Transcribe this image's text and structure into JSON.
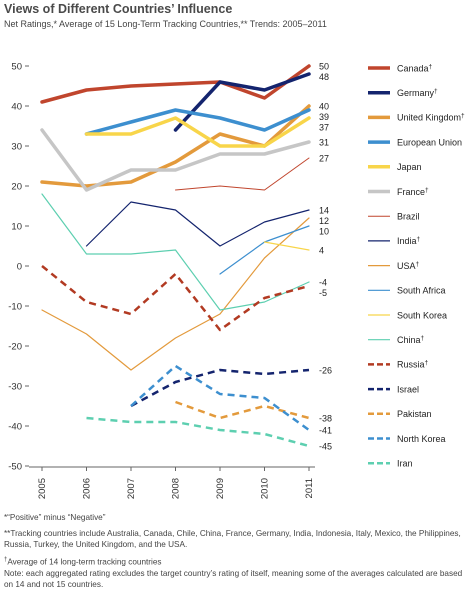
{
  "title": "Views of Different Countries’ Influence",
  "subtitle": "Net Ratings,* Average of 15 Long-Term Tracking Countries,** Trends: 2005–2011",
  "notes": {
    "note1": "*“Positive” minus “Negative”",
    "note2": "**Tracking countries include Australia, Canada, Chile, China, France, Germany, India, Indonesia, Italy, Mexico, the Philippines, Russia, Turkey, the United Kingdom, and the USA.",
    "note3_mark": "†",
    "note3": "Average of 14 long-term tracking countries",
    "note4": "Note: each aggregated rating excludes the target country’s rating of itself, meaning some of the averages calculated are based on 14 and not 15 countries."
  },
  "chart_data": {
    "type": "line",
    "x": [
      "2005",
      "2006",
      "2007",
      "2008",
      "2009",
      "2010",
      "2011"
    ],
    "ylim": [
      -50,
      50
    ],
    "yticks": [
      50,
      40,
      30,
      20,
      10,
      0,
      -10,
      -20,
      -30,
      -40,
      -50
    ],
    "grid": false,
    "legend_position": "right",
    "series": [
      {
        "name": "Canada",
        "mark": "†",
        "color": "#c0452d",
        "width": 3.5,
        "dash": "",
        "values": [
          41,
          44,
          45,
          45.5,
          46,
          42,
          50
        ],
        "end_label": "50"
      },
      {
        "name": "Germany",
        "mark": "†",
        "color": "#14246e",
        "width": 3.5,
        "dash": "",
        "values": [
          null,
          null,
          null,
          34,
          46,
          44,
          48
        ],
        "end_label": "48"
      },
      {
        "name": "United Kingdom",
        "mark": "†",
        "color": "#e39a3c",
        "width": 3.5,
        "dash": "",
        "values": [
          21,
          20,
          21,
          26,
          33,
          30,
          40
        ],
        "end_label": "40"
      },
      {
        "name": "European Union",
        "mark": "",
        "color": "#3d8fcf",
        "width": 3.5,
        "dash": "",
        "values": [
          null,
          33,
          36,
          39,
          37,
          34,
          39
        ],
        "end_label": "39"
      },
      {
        "name": "Japan",
        "mark": "",
        "color": "#f8d54a",
        "width": 3.5,
        "dash": "",
        "values": [
          null,
          33,
          33,
          37,
          30,
          30,
          37
        ],
        "end_label": "37"
      },
      {
        "name": "France",
        "mark": "†",
        "color": "#c6c6c6",
        "width": 3.5,
        "dash": "",
        "values": [
          34,
          19,
          24,
          24,
          28,
          28,
          31
        ],
        "end_label": "31"
      },
      {
        "name": "Brazil",
        "mark": "",
        "color": "#c0452d",
        "width": 1,
        "dash": "",
        "values": [
          null,
          null,
          null,
          19,
          20,
          19,
          27
        ],
        "end_label": "27"
      },
      {
        "name": "India",
        "mark": "†",
        "color": "#14246e",
        "width": 1.2,
        "dash": "",
        "values": [
          null,
          5,
          16,
          14,
          5,
          11,
          14
        ],
        "end_label": "14"
      },
      {
        "name": "USA",
        "mark": "†",
        "color": "#e39a3c",
        "width": 1.2,
        "dash": "",
        "values": [
          -11,
          -17,
          -26,
          -18,
          -12,
          2,
          12
        ],
        "end_label": "12"
      },
      {
        "name": "South Africa",
        "mark": "",
        "color": "#3d8fcf",
        "width": 1.2,
        "dash": "",
        "values": [
          null,
          null,
          null,
          null,
          -2,
          6,
          10
        ],
        "end_label": "10"
      },
      {
        "name": "South Korea",
        "mark": "",
        "color": "#f8d54a",
        "width": 1.2,
        "dash": "",
        "values": [
          null,
          null,
          null,
          null,
          null,
          6,
          4
        ],
        "end_label": "4"
      },
      {
        "name": "China",
        "mark": "†",
        "color": "#5dcfb0",
        "width": 1.2,
        "dash": "",
        "values": [
          18,
          3,
          3,
          4,
          -11,
          -9,
          -4
        ],
        "end_label": "-4"
      },
      {
        "name": "Russia",
        "mark": "†",
        "color": "#b23a22",
        "width": 2.5,
        "dash": "7,5",
        "values": [
          0,
          -9,
          -12,
          -2,
          -16,
          -8,
          -5
        ],
        "end_label": "-5"
      },
      {
        "name": "Israel",
        "mark": "",
        "color": "#14246e",
        "width": 2.5,
        "dash": "7,5",
        "values": [
          null,
          null,
          -35,
          -29,
          -26,
          -27,
          -26
        ],
        "end_label": "-26"
      },
      {
        "name": "Pakistan",
        "mark": "",
        "color": "#e39a3c",
        "width": 2.5,
        "dash": "7,5",
        "values": [
          null,
          null,
          null,
          -34,
          -38,
          -35,
          -38
        ],
        "end_label": "-38"
      },
      {
        "name": "North Korea",
        "mark": "",
        "color": "#3d8fcf",
        "width": 2.5,
        "dash": "7,5",
        "values": [
          null,
          null,
          -35,
          -25,
          -32,
          -33,
          -41
        ],
        "end_label": "-41"
      },
      {
        "name": "Iran",
        "mark": "",
        "color": "#5dcfb0",
        "width": 2.5,
        "dash": "7,5",
        "values": [
          null,
          -38,
          -39,
          -39,
          -41,
          -42,
          -45
        ],
        "end_label": "-45"
      }
    ]
  }
}
